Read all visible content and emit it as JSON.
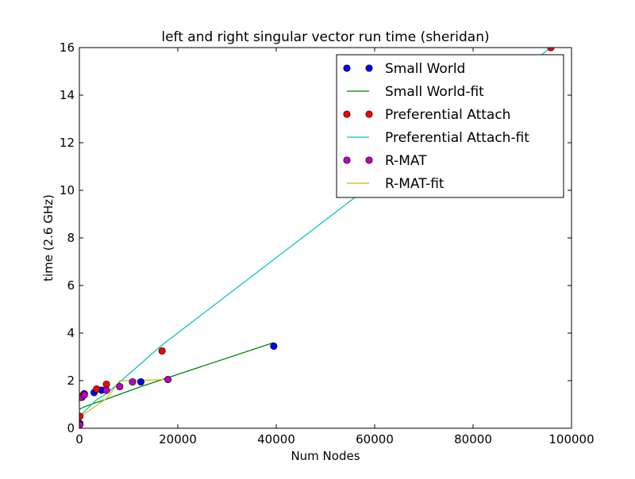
{
  "chart_data": {
    "type": "scatter",
    "title": "left and right singular vector run time (sheridan)",
    "xlabel": "Num Nodes",
    "ylabel": "time (2.6 GHz)",
    "xlim": [
      0,
      100000
    ],
    "ylim": [
      0,
      16
    ],
    "x_ticks": [
      0,
      20000,
      40000,
      60000,
      80000,
      100000
    ],
    "y_ticks": [
      0,
      2,
      4,
      6,
      8,
      10,
      12,
      14,
      16
    ],
    "grid": false,
    "legend_position": "top-right",
    "series": [
      {
        "name": "Small World",
        "kind": "markers",
        "color": "#0000ff",
        "points": [
          [
            100,
            0.2
          ],
          [
            500,
            1.3
          ],
          [
            1000,
            1.45
          ],
          [
            3000,
            1.5
          ],
          [
            4500,
            1.6
          ],
          [
            12500,
            1.95
          ],
          [
            39500,
            3.45
          ]
        ]
      },
      {
        "name": "Small World-fit",
        "kind": "line",
        "color": "#008000",
        "points": [
          [
            100,
            0.8
          ],
          [
            500,
            0.85
          ],
          [
            1000,
            0.9
          ],
          [
            3000,
            1.05
          ],
          [
            4500,
            1.15
          ],
          [
            12500,
            1.75
          ],
          [
            39500,
            3.6
          ]
        ]
      },
      {
        "name": "Preferential Attach",
        "kind": "markers",
        "color": "#ff0000",
        "points": [
          [
            100,
            0.5
          ],
          [
            500,
            1.35
          ],
          [
            3500,
            1.65
          ],
          [
            5500,
            1.85
          ],
          [
            16800,
            3.25
          ],
          [
            95800,
            16.0
          ]
        ]
      },
      {
        "name": "Preferential Attach-fit",
        "kind": "line",
        "color": "#00bfbf",
        "points": [
          [
            100,
            0.55
          ],
          [
            500,
            0.6
          ],
          [
            3500,
            1.2
          ],
          [
            5500,
            1.45
          ],
          [
            16800,
            3.5
          ],
          [
            95800,
            16.0
          ]
        ]
      },
      {
        "name": "R-MAT",
        "kind": "markers",
        "color": "#bf00bf",
        "points": [
          [
            100,
            0.15
          ],
          [
            300,
            1.3
          ],
          [
            1000,
            1.4
          ],
          [
            5500,
            1.6
          ],
          [
            8200,
            1.75
          ],
          [
            10800,
            1.95
          ],
          [
            18000,
            2.05
          ]
        ]
      },
      {
        "name": "R-MAT-fit",
        "kind": "line",
        "color": "#bfbf00",
        "points": [
          [
            100,
            0.45
          ],
          [
            300,
            0.5
          ],
          [
            1000,
            0.6
          ],
          [
            5500,
            1.25
          ],
          [
            8200,
            2.0
          ],
          [
            10800,
            2.0
          ],
          [
            18000,
            2.05
          ]
        ]
      }
    ]
  }
}
